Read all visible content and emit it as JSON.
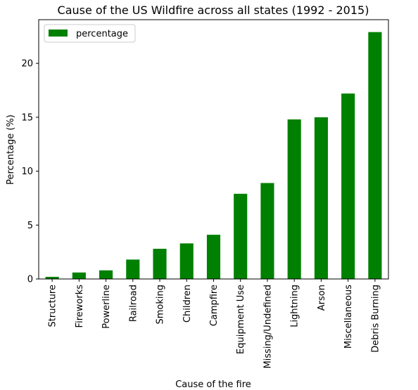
{
  "chart_data": {
    "type": "bar",
    "title": "Cause of the US Wildfire across all states (1992 - 2015)",
    "xlabel": "Cause of the fire",
    "ylabel": "Percentage (%)",
    "categories": [
      "Structure",
      "Fireworks",
      "Powerline",
      "Railroad",
      "Smoking",
      "Children",
      "Campfire",
      "Equipment Use",
      "Missing/Undefined",
      "Lightning",
      "Arson",
      "Miscellaneous",
      "Debris Burning"
    ],
    "series": [
      {
        "name": "percentage",
        "color": "#008000",
        "values": [
          0.2,
          0.6,
          0.8,
          1.8,
          2.8,
          3.3,
          4.1,
          7.9,
          8.9,
          14.8,
          15.0,
          17.2,
          22.9
        ]
      }
    ],
    "ylim": [
      0,
      24.05
    ],
    "yticks": [
      0,
      5,
      10,
      15,
      20
    ],
    "legend": "top-left",
    "grid": false
  }
}
